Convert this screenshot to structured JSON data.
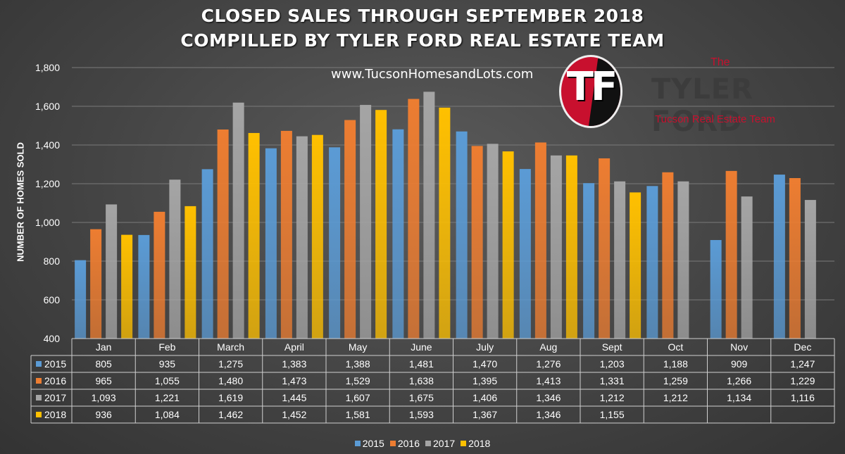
{
  "title_line1": "CLOSED SALES THROUGH SEPTEMBER 2018",
  "title_line2": "COMPILLED BY TYLER FORD REAL ESTATE TEAM",
  "website": "www.TucsonHomesandLots.com",
  "logo": {
    "badge_text": "TF",
    "the": "The",
    "name": "TYLER FORD",
    "subtitle": "Tucson Real Estate Team"
  },
  "chart_data": {
    "type": "bar",
    "ylabel": "NUMBER OF HOMES SOLD",
    "ylim": [
      400,
      1800
    ],
    "yticks": [
      400,
      600,
      800,
      1000,
      1200,
      1400,
      1600,
      1800
    ],
    "ytick_labels": [
      "400",
      "600",
      "800",
      "1,000",
      "1,200",
      "1,400",
      "1,600",
      "1,800"
    ],
    "grid": true,
    "legend_position": "bottom",
    "categories": [
      "Jan",
      "Feb",
      "March",
      "April",
      "May",
      "June",
      "July",
      "Aug",
      "Sept",
      "Oct",
      "Nov",
      "Dec"
    ],
    "series": [
      {
        "name": "2015",
        "color": "#5b9bd5",
        "values": [
          805,
          935,
          1275,
          1383,
          1388,
          1481,
          1470,
          1276,
          1203,
          1188,
          909,
          1247
        ]
      },
      {
        "name": "2016",
        "color": "#ed7d31",
        "values": [
          965,
          1055,
          1480,
          1473,
          1529,
          1638,
          1395,
          1413,
          1331,
          1259,
          1266,
          1229
        ]
      },
      {
        "name": "2017",
        "color": "#a5a5a5",
        "values": [
          1093,
          1221,
          1619,
          1445,
          1607,
          1675,
          1406,
          1346,
          1212,
          1212,
          1134,
          1116
        ]
      },
      {
        "name": "2018",
        "color": "#ffc000",
        "values": [
          936,
          1084,
          1462,
          1452,
          1581,
          1593,
          1367,
          1346,
          1155,
          null,
          null,
          null
        ]
      }
    ],
    "table": {
      "rows": [
        [
          "805",
          "935",
          "1,275",
          "1,383",
          "1,388",
          "1,481",
          "1,470",
          "1,276",
          "1,203",
          "1,188",
          "909",
          "1,247"
        ],
        [
          "965",
          "1,055",
          "1,480",
          "1,473",
          "1,529",
          "1,638",
          "1,395",
          "1,413",
          "1,331",
          "1,259",
          "1,266",
          "1,229"
        ],
        [
          "1,093",
          "1,221",
          "1,619",
          "1,445",
          "1,607",
          "1,675",
          "1,406",
          "1,346",
          "1,212",
          "1,212",
          "1,134",
          "1,116"
        ],
        [
          "936",
          "1,084",
          "1,462",
          "1,452",
          "1,581",
          "1,593",
          "1,367",
          "1,346",
          "1,155",
          "",
          "",
          ""
        ]
      ]
    }
  }
}
